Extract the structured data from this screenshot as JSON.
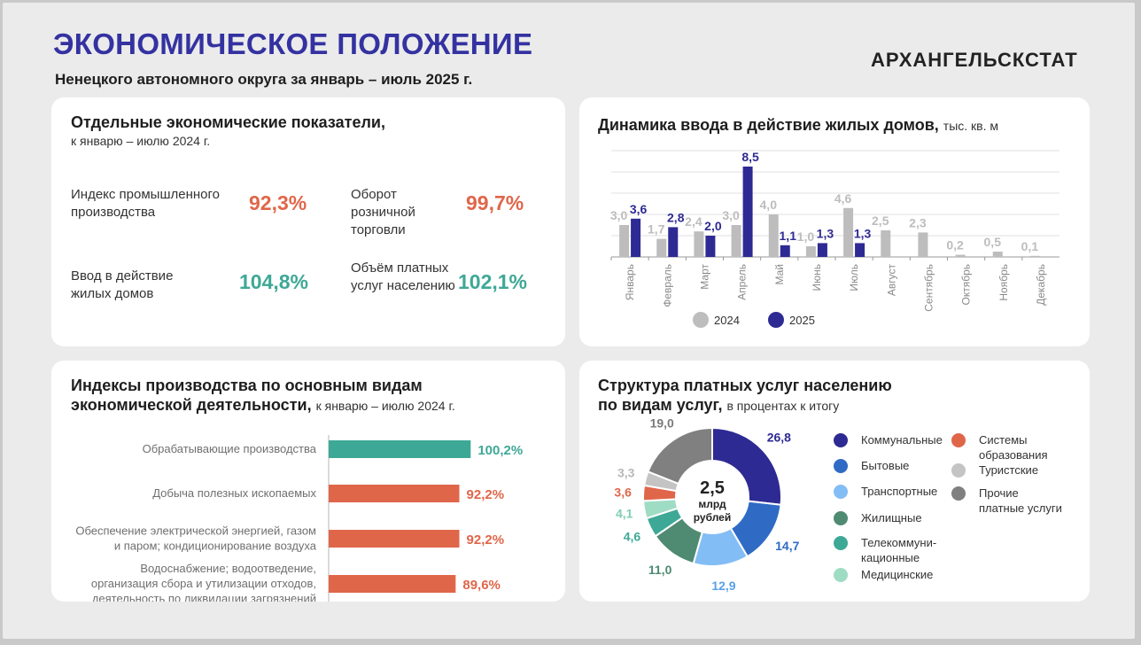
{
  "header": {
    "title": "ЭКОНОМИЧЕСКОЕ ПОЛОЖЕНИЕ",
    "subtitle": "Ненецкого автономного округа за январь – июль 2025 г.",
    "brand": "АРХАНГЕЛЬСКСТАТ"
  },
  "indicators": {
    "title": "Отдельные экономические показатели,",
    "note": "к январю – июлю 2024 г.",
    "items": [
      {
        "label": "Индекс промышленного производства",
        "value": "92,3%",
        "color": "#e0664a"
      },
      {
        "label": "Оборот розничной торговли",
        "value": "99,7%",
        "color": "#e0664a"
      },
      {
        "label": "Ввод в действие жилых домов",
        "value": "104,8%",
        "color": "#3ea896"
      },
      {
        "label": "Объём платных услуг населению",
        "value": "102,1%",
        "color": "#3ea896"
      }
    ]
  },
  "housing": {
    "title": "Динамика ввода в действие жилых домов,",
    "unit": "тыс. кв. м"
  },
  "production": {
    "title_line1": "Индексы производства по основным видам",
    "title_line2": "экономической деятельности,",
    "note": "к январю – июлю 2024 г."
  },
  "services": {
    "title_line1": "Структура платных услуг населению",
    "title_line2": "по видам услуг,",
    "note": "в процентах к итогу",
    "center_value": "2,5",
    "center_unit_1": "млрд",
    "center_unit_2": "рублей"
  },
  "chart_data": [
    {
      "type": "bar",
      "title": "Динамика ввода в действие жилых домов, тыс. кв. м",
      "categories": [
        "Январь",
        "Февраль",
        "Март",
        "Апрель",
        "Май",
        "Июнь",
        "Июль",
        "Август",
        "Сентябрь",
        "Октябрь",
        "Ноябрь",
        "Декабрь"
      ],
      "series": [
        {
          "name": "2024",
          "color": "#bdbdbd",
          "label_color": "#bdbdbd",
          "values": [
            3.0,
            1.7,
            2.4,
            3.0,
            4.0,
            1.0,
            4.6,
            2.5,
            2.3,
            0.2,
            0.5,
            0.1
          ],
          "labels": [
            "3,0",
            "1,7",
            "2,4",
            "3,0",
            "4,0",
            "1,0",
            "4,6",
            "2,5",
            "2,3",
            "0,2",
            "0,5",
            "0,1"
          ]
        },
        {
          "name": "2025",
          "color": "#2e2a93",
          "label_color": "#2e2a93",
          "values": [
            3.6,
            2.8,
            2.0,
            8.5,
            1.1,
            1.3,
            1.3,
            null,
            null,
            null,
            null,
            null
          ],
          "labels": [
            "3,6",
            "2,8",
            "2,0",
            "8,5",
            "1,1",
            "1,3",
            "1,3",
            null,
            null,
            null,
            null,
            null
          ]
        }
      ],
      "ylim": [
        0,
        10
      ],
      "grid": true,
      "legend_position": "bottom"
    },
    {
      "type": "bar",
      "orientation": "horizontal",
      "title": "Индексы производства по основным видам экономической деятельности, к январю – июлю 2024 г.",
      "categories": [
        [
          "Обрабатывающие производства"
        ],
        [
          "Добыча полезных ископаемых"
        ],
        [
          "Обеспечение электрической энергией, газом",
          "и паром; кондиционирование воздуха"
        ],
        [
          "Водоснабжение; водоотведение,",
          "организация сбора и утилизации отходов,",
          "деятельность по ликвидации загрязнений"
        ]
      ],
      "values": [
        100.2,
        92.2,
        92.2,
        89.6
      ],
      "labels": [
        "100,2%",
        "92,2%",
        "92,2%",
        "89,6%"
      ],
      "colors": [
        "#3ea896",
        "#e0664a",
        "#e0664a",
        "#e0664a"
      ],
      "label_colors": [
        "#3ea896",
        "#e0664a",
        "#e0664a",
        "#e0664a"
      ]
    },
    {
      "type": "pie",
      "title": "Структура платных услуг населению по видам услуг, в процентах к итогу",
      "donut": true,
      "slices": [
        {
          "name": "Коммунальные",
          "value": 26.8,
          "label": "26,8",
          "color": "#2e2a93",
          "label_color": "#2e2a93"
        },
        {
          "name": "Бытовые",
          "value": 14.7,
          "label": "14,7",
          "color": "#2f6bc4",
          "label_color": "#2f6bc4"
        },
        {
          "name": "Транспортные",
          "value": 12.9,
          "label": "12,9",
          "color": "#83bdf5",
          "label_color": "#5aa0e8"
        },
        {
          "name": "Жилищные",
          "value": 11.0,
          "label": "11,0",
          "color": "#4f8a72",
          "label_color": "#4f8a72"
        },
        {
          "name": "Телекоммуни-кационные",
          "value": 4.6,
          "label": "4,6",
          "color": "#3ea896",
          "label_color": "#3ea896"
        },
        {
          "name": "Медицинские",
          "value": 4.1,
          "label": "4,1",
          "color": "#9fdcc4",
          "label_color": "#7fcdb0"
        },
        {
          "name": "Системы образования",
          "value": 3.6,
          "label": "3,6",
          "color": "#e0664a",
          "label_color": "#e0664a"
        },
        {
          "name": "Туристские",
          "value": 3.3,
          "label": "3,3",
          "color": "#c4c4c4",
          "label_color": "#b8b8b8"
        },
        {
          "name": "Прочие платные услуги",
          "value": 19.0,
          "label": "19,0",
          "color": "#808080",
          "label_color": "#7a7a7a"
        }
      ],
      "legend": [
        {
          "lines": [
            "Коммунальные"
          ],
          "color": "#2e2a93"
        },
        {
          "lines": [
            "Бытовые"
          ],
          "color": "#2f6bc4"
        },
        {
          "lines": [
            "Транспортные"
          ],
          "color": "#83bdf5"
        },
        {
          "lines": [
            "Жилищные"
          ],
          "color": "#4f8a72"
        },
        {
          "lines": [
            "Телекоммуни-",
            "кационные"
          ],
          "color": "#3ea896"
        },
        {
          "lines": [
            "Медицинские"
          ],
          "color": "#9fdcc4"
        },
        {
          "lines": [
            "Системы",
            "образования"
          ],
          "color": "#e0664a"
        },
        {
          "lines": [
            "Туристские"
          ],
          "color": "#c4c4c4"
        },
        {
          "lines": [
            "Прочие",
            "платные услуги"
          ],
          "color": "#808080"
        }
      ]
    }
  ]
}
